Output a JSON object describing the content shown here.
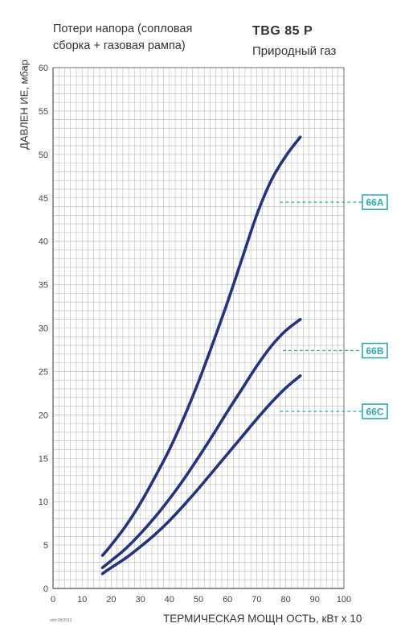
{
  "header": {
    "subtitle_line1": "Потери напора (сопловая",
    "subtitle_line2": "сборка + газовая рампа)",
    "model": "TBG 85 P",
    "gas": "Природный газ"
  },
  "footer": {
    "edit_code": "edit.08/2012"
  },
  "colors": {
    "curve": "#25337f",
    "marker": "#2fa9b0",
    "grid": "#b9b9b9",
    "axis": "#6b6b6b"
  },
  "chart_data": {
    "type": "line",
    "title": "",
    "xlabel": "ТЕРМИЧЕСКАЯ МОЩН ОСТЬ, кВт x 10",
    "ylabel": "ДАВЛЕН ИЕ, мбар",
    "xlim": [
      0,
      100
    ],
    "ylim": [
      0,
      60
    ],
    "x_ticks": [
      0,
      10,
      20,
      30,
      40,
      50,
      60,
      70,
      80,
      90,
      100
    ],
    "y_ticks": [
      0,
      5,
      10,
      15,
      20,
      25,
      30,
      35,
      40,
      45,
      50,
      55,
      60
    ],
    "grid": true,
    "series": [
      {
        "name": "66A",
        "x": [
          17,
          20,
          25,
          30,
          35,
          40,
          45,
          50,
          55,
          60,
          65,
          70,
          75,
          80,
          85
        ],
        "y": [
          3.8,
          5.0,
          7.2,
          9.8,
          12.8,
          16.0,
          19.7,
          23.8,
          28.3,
          33.0,
          38.0,
          43.0,
          47.0,
          49.8,
          52.0
        ]
      },
      {
        "name": "66B",
        "x": [
          17,
          20,
          25,
          30,
          35,
          40,
          45,
          50,
          55,
          60,
          65,
          70,
          75,
          80,
          85
        ],
        "y": [
          2.4,
          3.2,
          4.6,
          6.3,
          8.2,
          10.3,
          12.6,
          15.1,
          17.7,
          20.4,
          23.0,
          25.6,
          27.9,
          29.7,
          31.0
        ]
      },
      {
        "name": "66C",
        "x": [
          17,
          20,
          25,
          30,
          35,
          40,
          45,
          50,
          55,
          60,
          65,
          70,
          75,
          80,
          85
        ],
        "y": [
          1.7,
          2.4,
          3.5,
          4.8,
          6.2,
          7.8,
          9.6,
          11.5,
          13.5,
          15.5,
          17.5,
          19.5,
          21.4,
          23.1,
          24.5
        ]
      }
    ],
    "markers": [
      {
        "label": "66A",
        "y": 44.5,
        "from_x": 78
      },
      {
        "label": "66B",
        "y": 27.4,
        "from_x": 79
      },
      {
        "label": "66C",
        "y": 20.4,
        "from_x": 78
      }
    ]
  }
}
